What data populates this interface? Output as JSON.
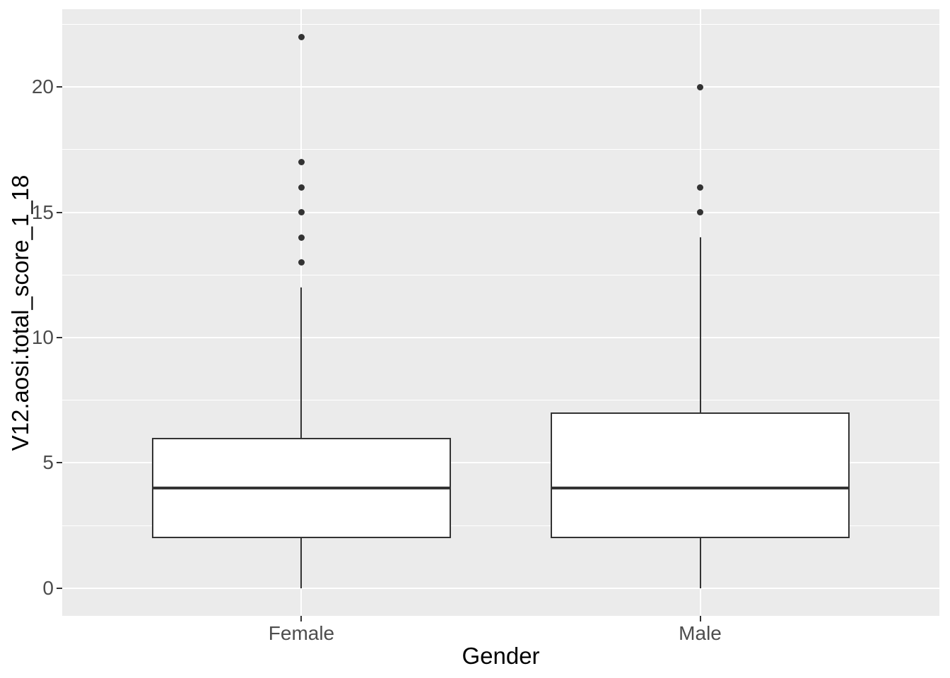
{
  "chart_data": {
    "type": "boxplot",
    "title": "",
    "xlabel": "Gender",
    "ylabel": "V12.aosi.total_score_1_18",
    "categories": [
      "Female",
      "Male"
    ],
    "series": [
      {
        "name": "Female",
        "position": 1,
        "lower_whisker": 0,
        "q1": 2,
        "median": 4,
        "q3": 6,
        "upper_whisker": 12,
        "outliers": [
          13,
          14,
          15,
          16,
          17,
          22
        ]
      },
      {
        "name": "Male",
        "position": 2,
        "lower_whisker": 0,
        "q1": 2,
        "median": 4,
        "q3": 7,
        "upper_whisker": 14,
        "outliers": [
          15,
          16,
          20
        ]
      }
    ],
    "y_ticks": [
      0,
      5,
      10,
      15,
      20
    ],
    "y_minor_ticks": [
      2.5,
      7.5,
      12.5,
      17.5,
      22.5
    ],
    "ylim": [
      -1.1,
      23.1
    ],
    "xlim": [
      0.4,
      2.6
    ],
    "box_width": 0.75,
    "grid": true,
    "legend": "none",
    "colors": {
      "panel_background": "#EBEBEB",
      "grid_major": "#FFFFFF",
      "grid_minor": "#FFFFFF",
      "box_fill": "#FFFFFF",
      "box_stroke": "#333333",
      "outlier": "#333333",
      "tick_mark": "#333333",
      "tick_label": "#4D4D4D",
      "axis_title": "#000000",
      "figure_background": "#FFFFFF"
    }
  }
}
